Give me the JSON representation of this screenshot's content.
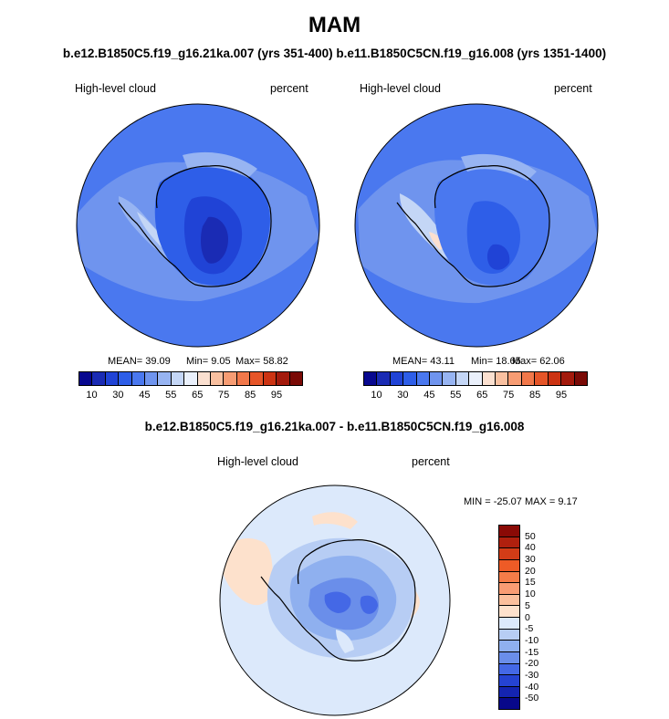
{
  "figure": {
    "title": "MAM",
    "subtitle": "b.e12.B1850C5.f19_g16.21ka.007 (yrs 351-400) b.e11.B1850C5CN.f19_g16.008 (yrs 1351-1400)",
    "diff_title": "b.e12.B1850C5.f19_g16.21ka.007 - b.e11.B1850C5CN.f19_g16.008"
  },
  "chart_data": [
    {
      "type": "heatmap",
      "projection": "south-polar-stereographic",
      "variable_label": "High-level cloud",
      "units_label": "percent",
      "stats": {
        "mean_text": "MEAN=  39.09",
        "min_text": "Min=   9.05",
        "max_text": "Max=  58.82"
      },
      "colorbar": {
        "orientation": "horizontal",
        "tick_labels": [
          "10",
          "30",
          "45",
          "55",
          "65",
          "75",
          "85",
          "95"
        ],
        "levels": [
          10,
          20,
          30,
          40,
          45,
          50,
          55,
          60,
          65,
          70,
          75,
          80,
          85,
          90,
          95
        ],
        "colors": [
          "#08088f",
          "#1a2bb4",
          "#2043d6",
          "#2e5ee8",
          "#4a78ef",
          "#6f94ee",
          "#97b4f2",
          "#c4d6f6",
          "#eaf0fb",
          "#fbe0d0",
          "#f9c0a0",
          "#f79c73",
          "#f2784a",
          "#e65528",
          "#cc3312",
          "#a31a0c",
          "#7a0a06"
        ]
      }
    },
    {
      "type": "heatmap",
      "projection": "south-polar-stereographic",
      "variable_label": "High-level cloud",
      "units_label": "percent",
      "stats": {
        "mean_text": "MEAN=  43.11",
        "min_text": "Min=  18.65",
        "max_text": "Max=  62.06"
      },
      "colorbar": {
        "orientation": "horizontal",
        "tick_labels": [
          "10",
          "30",
          "45",
          "55",
          "65",
          "75",
          "85",
          "95"
        ],
        "levels": [
          10,
          20,
          30,
          40,
          45,
          50,
          55,
          60,
          65,
          70,
          75,
          80,
          85,
          90,
          95
        ],
        "colors": [
          "#08088f",
          "#1a2bb4",
          "#2043d6",
          "#2e5ee8",
          "#4a78ef",
          "#6f94ee",
          "#97b4f2",
          "#c4d6f6",
          "#eaf0fb",
          "#fbe0d0",
          "#f9c0a0",
          "#f79c73",
          "#f2784a",
          "#e65528",
          "#cc3312",
          "#a31a0c",
          "#7a0a06"
        ]
      }
    },
    {
      "type": "heatmap",
      "projection": "south-polar-stereographic",
      "variable_label": "High-level cloud",
      "units_label": "percent",
      "stats": {
        "minmax_text": "MIN = -25.07 MAX =   9.17"
      },
      "colorbar": {
        "orientation": "vertical",
        "tick_labels": [
          "50",
          "40",
          "30",
          "20",
          "15",
          "10",
          "5",
          "0",
          "-5",
          "-10",
          "-15",
          "-20",
          "-30",
          "-40",
          "-50"
        ],
        "levels": [
          50,
          40,
          30,
          20,
          15,
          10,
          5,
          0,
          -5,
          -10,
          -15,
          -20,
          -30,
          -40,
          -50
        ],
        "colors": [
          "#8a0a06",
          "#b0200e",
          "#d23c17",
          "#ee5b26",
          "#f57c48",
          "#f99c73",
          "#fbbf9c",
          "#fde1cc",
          "#dce9fb",
          "#b7cdf4",
          "#8fb0ef",
          "#6a8eea",
          "#4468e6",
          "#2543d2",
          "#1424b0",
          "#08088a"
        ]
      }
    }
  ]
}
